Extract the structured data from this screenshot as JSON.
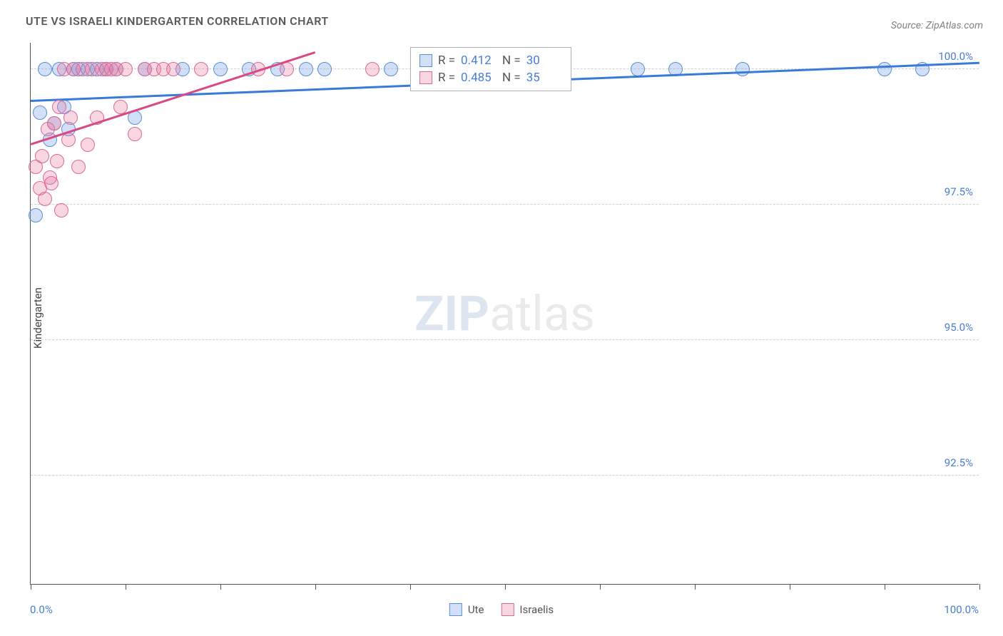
{
  "title": "UTE VS ISRAELI KINDERGARTEN CORRELATION CHART",
  "source_label": "Source: ",
  "source_value": "ZipAtlas.com",
  "y_axis_label": "Kindergarten",
  "watermark_bold": "ZIP",
  "watermark_light": "atlas",
  "chart": {
    "type": "scatter",
    "background_color": "#ffffff",
    "grid_color": "#d0d0d0",
    "axis_color": "#555555",
    "tick_label_color": "#4a7dd6",
    "xlim": [
      0,
      100
    ],
    "ylim": [
      90.5,
      100.5
    ],
    "x_ticks": [
      0,
      10,
      20,
      30,
      40,
      50,
      60,
      70,
      80,
      90,
      100
    ],
    "y_ticks": [
      92.5,
      95.0,
      97.5,
      100.0
    ],
    "y_tick_labels": [
      "92.5%",
      "95.0%",
      "97.5%",
      "100.0%"
    ],
    "x_min_label": "0.0%",
    "x_max_label": "100.0%",
    "marker_radius": 10,
    "marker_border_width": 1.2,
    "series": [
      {
        "name": "Ute",
        "fill_color": "rgba(123,167,230,0.35)",
        "stroke_color": "#5b8fd6",
        "trend_color": "#3a7ad9",
        "stats": {
          "R": "0.412",
          "N": "30"
        },
        "trend": {
          "x1": 0,
          "y1": 99.4,
          "x2": 100,
          "y2": 100.1
        },
        "points": [
          {
            "x": 0.5,
            "y": 97.3
          },
          {
            "x": 1.0,
            "y": 99.2
          },
          {
            "x": 1.5,
            "y": 100.0
          },
          {
            "x": 2.0,
            "y": 98.7
          },
          {
            "x": 2.5,
            "y": 99.0
          },
          {
            "x": 3.0,
            "y": 100.0
          },
          {
            "x": 3.5,
            "y": 99.3
          },
          {
            "x": 4.0,
            "y": 98.9
          },
          {
            "x": 4.5,
            "y": 100.0
          },
          {
            "x": 5.0,
            "y": 100.0
          },
          {
            "x": 6.0,
            "y": 100.0
          },
          {
            "x": 7.0,
            "y": 100.0
          },
          {
            "x": 8.0,
            "y": 100.0
          },
          {
            "x": 9.0,
            "y": 100.0
          },
          {
            "x": 11.0,
            "y": 99.1
          },
          {
            "x": 12.0,
            "y": 100.0
          },
          {
            "x": 16.0,
            "y": 100.0
          },
          {
            "x": 20.0,
            "y": 100.0
          },
          {
            "x": 23.0,
            "y": 100.0
          },
          {
            "x": 26.0,
            "y": 100.0
          },
          {
            "x": 29.0,
            "y": 100.0
          },
          {
            "x": 31.0,
            "y": 100.0
          },
          {
            "x": 38.0,
            "y": 100.0
          },
          {
            "x": 44.0,
            "y": 100.0
          },
          {
            "x": 48.0,
            "y": 100.0
          },
          {
            "x": 64.0,
            "y": 100.0
          },
          {
            "x": 68.0,
            "y": 100.0
          },
          {
            "x": 75.0,
            "y": 100.0
          },
          {
            "x": 90.0,
            "y": 100.0
          },
          {
            "x": 94.0,
            "y": 100.0
          }
        ]
      },
      {
        "name": "Israelis",
        "fill_color": "rgba(232,120,160,0.3)",
        "stroke_color": "#d96a98",
        "trend_color": "#d94a85",
        "stats": {
          "R": "0.485",
          "N": "35"
        },
        "trend": {
          "x1": 0,
          "y1": 98.6,
          "x2": 30,
          "y2": 100.3
        },
        "points": [
          {
            "x": 0.5,
            "y": 98.2
          },
          {
            "x": 1.0,
            "y": 97.8
          },
          {
            "x": 1.2,
            "y": 98.4
          },
          {
            "x": 1.5,
            "y": 97.6
          },
          {
            "x": 1.8,
            "y": 98.9
          },
          {
            "x": 2.0,
            "y": 98.0
          },
          {
            "x": 2.2,
            "y": 97.9
          },
          {
            "x": 2.5,
            "y": 99.0
          },
          {
            "x": 2.8,
            "y": 98.3
          },
          {
            "x": 3.0,
            "y": 99.3
          },
          {
            "x": 3.2,
            "y": 97.4
          },
          {
            "x": 3.5,
            "y": 100.0
          },
          {
            "x": 4.0,
            "y": 98.7
          },
          {
            "x": 4.2,
            "y": 99.1
          },
          {
            "x": 4.5,
            "y": 100.0
          },
          {
            "x": 5.0,
            "y": 98.2
          },
          {
            "x": 5.5,
            "y": 100.0
          },
          {
            "x": 6.0,
            "y": 98.6
          },
          {
            "x": 6.5,
            "y": 100.0
          },
          {
            "x": 7.0,
            "y": 99.1
          },
          {
            "x": 7.5,
            "y": 100.0
          },
          {
            "x": 8.0,
            "y": 100.0
          },
          {
            "x": 8.5,
            "y": 100.0
          },
          {
            "x": 9.0,
            "y": 100.0
          },
          {
            "x": 9.5,
            "y": 99.3
          },
          {
            "x": 10.0,
            "y": 100.0
          },
          {
            "x": 11.0,
            "y": 98.8
          },
          {
            "x": 12.0,
            "y": 100.0
          },
          {
            "x": 13.0,
            "y": 100.0
          },
          {
            "x": 14.0,
            "y": 100.0
          },
          {
            "x": 15.0,
            "y": 100.0
          },
          {
            "x": 18.0,
            "y": 100.0
          },
          {
            "x": 24.0,
            "y": 100.0
          },
          {
            "x": 27.0,
            "y": 100.0
          },
          {
            "x": 36.0,
            "y": 100.0
          }
        ]
      }
    ]
  },
  "legend": {
    "item1_label": "Ute",
    "item2_label": "Israelis"
  },
  "stats_box": {
    "r_label": "R =",
    "n_label": "N ="
  }
}
